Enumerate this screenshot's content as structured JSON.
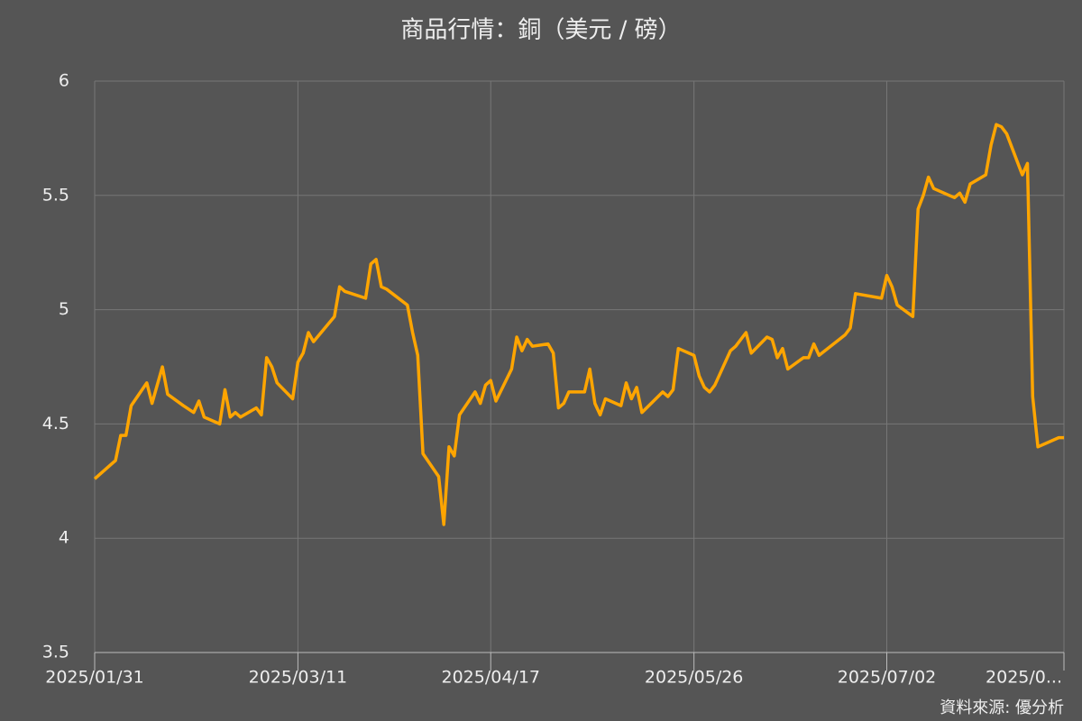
{
  "chart_data": {
    "type": "line",
    "title": "商品行情：銅（美元 / 磅）",
    "source": "資料來源: 優分析",
    "color": "#ffa500",
    "grid": true,
    "xlim": [
      "2025-01-31",
      "2025-08-05"
    ],
    "xticks": [
      {
        "value": "2025-01-31",
        "label": "2025/01/31"
      },
      {
        "value": "2025-03-11",
        "label": "2025/03/11"
      },
      {
        "value": "2025-04-17",
        "label": "2025/04/17"
      },
      {
        "value": "2025-05-26",
        "label": "2025/05/26"
      },
      {
        "value": "2025-07-02",
        "label": "2025/07/02"
      },
      {
        "value": "2025-08-05",
        "label": "2025/0..."
      }
    ],
    "ylim": [
      3.5,
      6
    ],
    "yticks": [
      3.5,
      4,
      4.5,
      5,
      5.5,
      6
    ],
    "x": [
      "2025-01-31",
      "2025-02-04",
      "2025-02-05",
      "2025-02-06",
      "2025-02-07",
      "2025-02-10",
      "2025-02-11",
      "2025-02-13",
      "2025-02-14",
      "2025-02-17",
      "2025-02-19",
      "2025-02-20",
      "2025-02-21",
      "2025-02-24",
      "2025-02-25",
      "2025-02-26",
      "2025-02-27",
      "2025-02-28",
      "2025-03-03",
      "2025-03-04",
      "2025-03-05",
      "2025-03-06",
      "2025-03-07",
      "2025-03-10",
      "2025-03-11",
      "2025-03-12",
      "2025-03-13",
      "2025-03-14",
      "2025-03-18",
      "2025-03-19",
      "2025-03-20",
      "2025-03-24",
      "2025-03-25",
      "2025-03-26",
      "2025-03-27",
      "2025-03-28",
      "2025-04-01",
      "2025-04-02",
      "2025-04-03",
      "2025-04-04",
      "2025-04-07",
      "2025-04-08",
      "2025-04-09",
      "2025-04-10",
      "2025-04-11",
      "2025-04-14",
      "2025-04-15",
      "2025-04-16",
      "2025-04-17",
      "2025-04-18",
      "2025-04-21",
      "2025-04-22",
      "2025-04-23",
      "2025-04-24",
      "2025-04-25",
      "2025-04-28",
      "2025-04-29",
      "2025-04-30",
      "2025-05-01",
      "2025-05-02",
      "2025-05-05",
      "2025-05-06",
      "2025-05-07",
      "2025-05-08",
      "2025-05-09",
      "2025-05-12",
      "2025-05-13",
      "2025-05-14",
      "2025-05-15",
      "2025-05-16",
      "2025-05-20",
      "2025-05-21",
      "2025-05-22",
      "2025-05-23",
      "2025-05-26",
      "2025-05-27",
      "2025-05-28",
      "2025-05-29",
      "2025-05-30",
      "2025-06-02",
      "2025-06-03",
      "2025-06-05",
      "2025-06-06",
      "2025-06-09",
      "2025-06-10",
      "2025-06-11",
      "2025-06-12",
      "2025-06-13",
      "2025-06-16",
      "2025-06-17",
      "2025-06-18",
      "2025-06-19",
      "2025-06-24",
      "2025-06-25",
      "2025-06-26",
      "2025-07-01",
      "2025-07-02",
      "2025-07-03",
      "2025-07-04",
      "2025-07-07",
      "2025-07-08",
      "2025-07-09",
      "2025-07-10",
      "2025-07-11",
      "2025-07-14",
      "2025-07-15",
      "2025-07-16",
      "2025-07-17",
      "2025-07-18",
      "2025-07-21",
      "2025-07-22",
      "2025-07-23",
      "2025-07-24",
      "2025-07-25",
      "2025-07-28",
      "2025-07-29",
      "2025-07-30",
      "2025-07-31",
      "2025-08-04",
      "2025-08-05"
    ],
    "values": [
      4.26,
      4.34,
      4.45,
      4.45,
      4.58,
      4.68,
      4.59,
      4.75,
      4.63,
      4.58,
      4.55,
      4.6,
      4.53,
      4.5,
      4.65,
      4.53,
      4.55,
      4.53,
      4.57,
      4.54,
      4.79,
      4.75,
      4.68,
      4.61,
      4.77,
      4.81,
      4.9,
      4.86,
      4.97,
      5.1,
      5.08,
      5.05,
      5.2,
      5.22,
      5.1,
      5.09,
      5.02,
      4.9,
      4.8,
      4.37,
      4.27,
      4.06,
      4.4,
      4.36,
      4.54,
      4.64,
      4.59,
      4.67,
      4.69,
      4.6,
      4.74,
      4.88,
      4.82,
      4.87,
      4.84,
      4.85,
      4.81,
      4.57,
      4.59,
      4.64,
      4.64,
      4.74,
      4.59,
      4.54,
      4.61,
      4.58,
      4.68,
      4.61,
      4.66,
      4.55,
      4.64,
      4.62,
      4.65,
      4.83,
      4.8,
      4.71,
      4.66,
      4.64,
      4.67,
      4.82,
      4.84,
      4.9,
      4.81,
      4.88,
      4.87,
      4.79,
      4.83,
      4.74,
      4.79,
      4.79,
      4.85,
      4.8,
      4.89,
      4.92,
      5.07,
      5.05,
      5.15,
      5.1,
      5.02,
      4.97,
      5.44,
      5.5,
      5.58,
      5.53,
      5.5,
      5.49,
      5.51,
      5.47,
      5.55,
      5.59,
      5.72,
      5.81,
      5.8,
      5.77,
      5.59,
      5.64,
      4.62,
      4.4,
      4.44,
      4.44
    ]
  }
}
